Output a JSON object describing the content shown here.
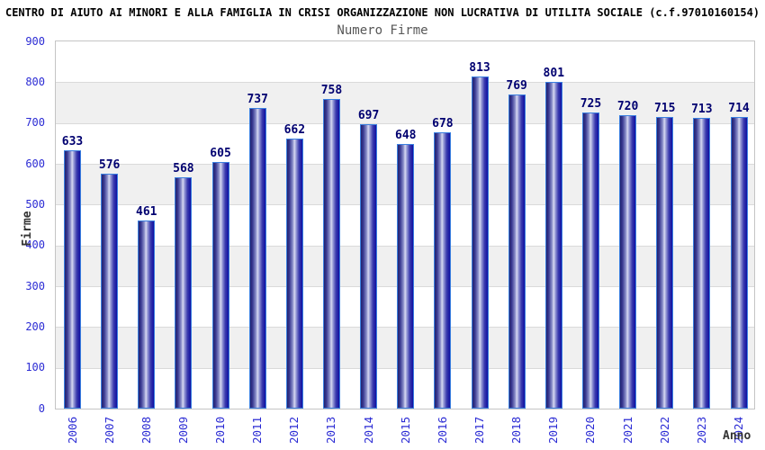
{
  "header": {
    "title": "CENTRO DI AIUTO AI MINORI E ALLA FAMIGLIA IN CRISI ORGANIZZAZIONE NON LUCRATIVA DI UTILITA SOCIALE (c.f.97010160154)",
    "subtitle": "Numero Firme"
  },
  "chart_data": {
    "type": "bar",
    "title": "Numero Firme",
    "categories": [
      "2006",
      "2007",
      "2008",
      "2009",
      "2010",
      "2011",
      "2012",
      "2013",
      "2014",
      "2015",
      "2016",
      "2017",
      "2018",
      "2019",
      "2020",
      "2021",
      "2022",
      "2023",
      "2024"
    ],
    "values": [
      633,
      576,
      461,
      568,
      605,
      737,
      662,
      758,
      697,
      648,
      678,
      813,
      769,
      801,
      725,
      720,
      715,
      713,
      714
    ],
    "xlabel": "Anno",
    "ylabel": "Firme",
    "ylim": [
      0,
      900
    ],
    "ytick_step": 100,
    "grid": "horizontal gridlines every 100 with alternating white/gray bands",
    "legend": "none",
    "colors": {
      "title": "#000000",
      "subtitle": "#575757",
      "tick_label": "#2b2bd4",
      "value_label": "#000070",
      "axis_title": "#333333",
      "band_alt": "#f0f0f0",
      "band_main": "#ffffff",
      "gridline": "#dadada",
      "plot_border": "#c4c4c4",
      "bar_border": "#3a7fe0",
      "bar_edge_left": "#21216e",
      "bar_mid": "#8e92cc",
      "bar_highlight": "#d8daf2",
      "bar_edge_right": "#0f0fa0"
    }
  }
}
